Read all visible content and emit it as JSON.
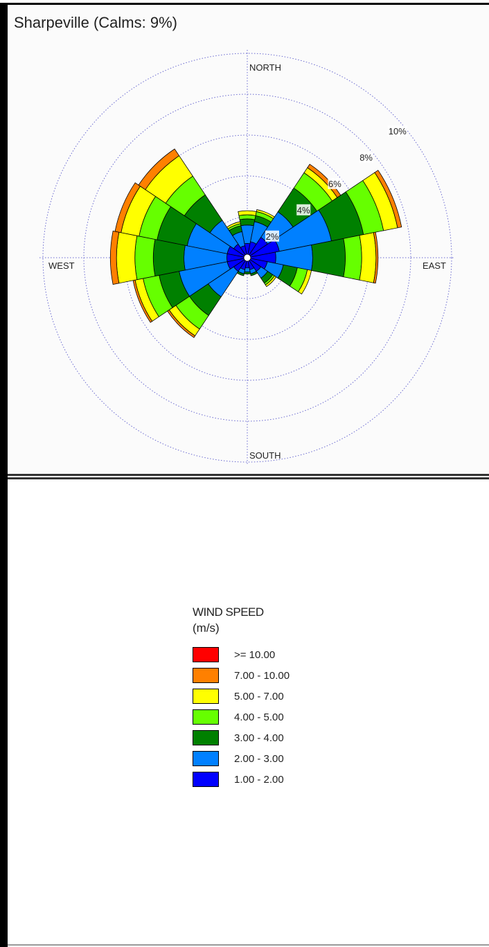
{
  "chart_data": {
    "type": "wind-rose",
    "title": "Sharpeville (Calms: 9%)",
    "directions": [
      "N",
      "NNE",
      "NE",
      "ENE",
      "E",
      "ESE",
      "SE",
      "SSE",
      "S",
      "SSW",
      "SW",
      "WSW",
      "W",
      "WNW",
      "NW",
      "NNW"
    ],
    "compass_labels": {
      "north": "NORTH",
      "east": "EAST",
      "south": "SOUTH",
      "west": "WEST"
    },
    "radial_ticks": [
      2,
      4,
      6,
      8,
      10
    ],
    "radial_tick_labels": [
      "2%",
      "4%",
      "6%",
      "8%",
      "10%"
    ],
    "radial_unit": "%",
    "radial_max": 10,
    "legend": {
      "title": "WIND SPEED",
      "unit": "(m/s)",
      "bins": [
        {
          "label": ">= 10.00",
          "color": "#ff0000"
        },
        {
          "label": "7.00 - 10.00",
          "color": "#ff8000"
        },
        {
          "label": "5.00 - 7.00",
          "color": "#ffff00"
        },
        {
          "label": "4.00 - 5.00",
          "color": "#66ff00"
        },
        {
          "label": "3.00 - 4.00",
          "color": "#008000"
        },
        {
          "label": "2.00 - 3.00",
          "color": "#0080ff"
        },
        {
          "label": "1.00 - 2.00",
          "color": "#0000ff"
        }
      ]
    },
    "series": [
      {
        "name": "1.00 - 2.00",
        "color": "#0000ff",
        "values": [
          0.7,
          0.8,
          1.2,
          1.6,
          1.4,
          1.0,
          0.8,
          0.6,
          0.5,
          0.6,
          0.8,
          1.0,
          1.0,
          1.0,
          0.8,
          0.6
        ]
      },
      {
        "name": "2.00 - 3.00",
        "color": "#0080ff",
        "values": [
          0.9,
          1.0,
          1.5,
          2.6,
          1.8,
          0.8,
          0.4,
          0.2,
          0.2,
          0.2,
          1.5,
          2.4,
          2.1,
          2.0,
          1.4,
          0.7
        ]
      },
      {
        "name": "3.00 - 4.00",
        "color": "#008000",
        "values": [
          0.3,
          0.3,
          1.4,
          1.6,
          1.6,
          0.7,
          0.3,
          0.1,
          0.1,
          0.1,
          1.1,
          1.0,
          1.5,
          1.5,
          1.5,
          0.3
        ]
      },
      {
        "name": "4.00 - 5.00",
        "color": "#66ff00",
        "values": [
          0.2,
          0.2,
          0.9,
          1.0,
          0.8,
          0.5,
          0.1,
          0.0,
          0.0,
          0.0,
          0.8,
          0.8,
          0.9,
          0.9,
          1.1,
          0.1
        ]
      },
      {
        "name": "5.00 - 7.00",
        "color": "#ffff00",
        "values": [
          0.2,
          0.1,
          0.3,
          0.7,
          0.7,
          0.2,
          0.1,
          0.0,
          0.0,
          0.0,
          0.4,
          0.4,
          0.9,
          0.9,
          1.2,
          0.1
        ]
      },
      {
        "name": "7.00 - 10.00",
        "color": "#ff8000",
        "values": [
          0.0,
          0.0,
          0.2,
          0.2,
          0.1,
          0.0,
          0.0,
          0.0,
          0.0,
          0.0,
          0.1,
          0.1,
          0.3,
          0.3,
          0.4,
          0.0
        ]
      },
      {
        "name": ">= 10.00",
        "color": "#ff0000",
        "values": [
          0,
          0,
          0,
          0,
          0,
          0,
          0,
          0,
          0,
          0,
          0,
          0,
          0,
          0,
          0,
          0
        ]
      }
    ]
  }
}
